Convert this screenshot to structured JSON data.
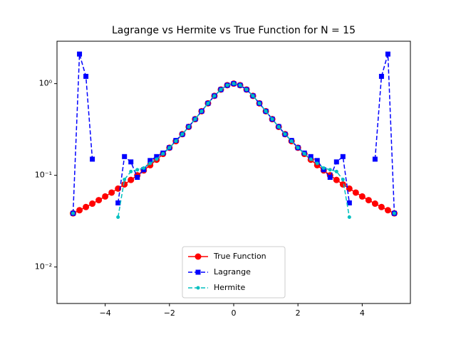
{
  "chart_data": {
    "type": "line",
    "title": "Lagrange vs Hermite vs True Function for N = 15",
    "x": [
      -5.0,
      -4.8,
      -4.6,
      -4.4,
      -4.2,
      -4.0,
      -3.8,
      -3.6,
      -3.4,
      -3.2,
      -3.0,
      -2.8,
      -2.6,
      -2.4,
      -2.2,
      -2.0,
      -1.8,
      -1.6,
      -1.4,
      -1.2,
      -1.0,
      -0.8,
      -0.6,
      -0.4,
      -0.2,
      0.0,
      0.2,
      0.4,
      0.6,
      0.8,
      1.0,
      1.2,
      1.4,
      1.6,
      1.8,
      2.0,
      2.2,
      2.4,
      2.6,
      2.8,
      3.0,
      3.2,
      3.4,
      3.6,
      3.8,
      4.0,
      4.2,
      4.4,
      4.6,
      4.8,
      5.0
    ],
    "series": [
      {
        "name": "True Function",
        "color": "#ff0000",
        "marker": "circle",
        "dashed": false,
        "values": [
          0.0385,
          0.0416,
          0.0451,
          0.0491,
          0.0536,
          0.0588,
          0.0648,
          0.0716,
          0.0796,
          0.089,
          0.1,
          0.1131,
          0.1289,
          0.1479,
          0.1712,
          0.2,
          0.2358,
          0.2809,
          0.3378,
          0.4098,
          0.5,
          0.6098,
          0.7353,
          0.8621,
          0.9615,
          1.0,
          0.9615,
          0.8621,
          0.7353,
          0.6098,
          0.5,
          0.4098,
          0.3378,
          0.2809,
          0.2358,
          0.2,
          0.1712,
          0.1479,
          0.1289,
          0.1131,
          0.1,
          0.089,
          0.0796,
          0.0716,
          0.0648,
          0.0588,
          0.0536,
          0.0491,
          0.0451,
          0.0416,
          0.0385
        ]
      },
      {
        "name": "Lagrange",
        "color": "#0000ff",
        "marker": "square",
        "dashed": true,
        "values": [
          0.0385,
          2.1,
          1.2,
          0.15,
          null,
          null,
          null,
          0.05,
          0.16,
          0.14,
          0.095,
          0.115,
          0.145,
          0.16,
          0.175,
          0.2,
          0.24,
          0.28,
          0.34,
          0.41,
          0.5,
          0.61,
          0.735,
          0.86,
          0.96,
          1.0,
          0.96,
          0.86,
          0.735,
          0.61,
          0.5,
          0.41,
          0.34,
          0.28,
          0.24,
          0.2,
          0.175,
          0.16,
          0.145,
          0.115,
          0.095,
          0.14,
          0.16,
          0.05,
          null,
          null,
          null,
          0.15,
          1.2,
          2.1,
          0.0385
        ]
      },
      {
        "name": "Hermite",
        "color": "#00bfbf",
        "marker": "dot",
        "dashed": true,
        "values": [
          0.0385,
          null,
          null,
          null,
          null,
          null,
          null,
          0.035,
          0.09,
          0.11,
          0.115,
          0.12,
          0.135,
          0.15,
          0.172,
          0.2,
          0.236,
          0.281,
          0.338,
          0.41,
          0.5,
          0.61,
          0.735,
          0.862,
          0.962,
          1.0,
          0.962,
          0.862,
          0.735,
          0.61,
          0.5,
          0.41,
          0.338,
          0.281,
          0.236,
          0.2,
          0.172,
          0.15,
          0.135,
          0.12,
          0.115,
          0.11,
          0.09,
          0.035,
          null,
          null,
          null,
          null,
          null,
          null,
          0.0385
        ]
      }
    ],
    "xlim": [
      -5.5,
      5.5
    ],
    "xticks": [
      {
        "value": -4,
        "label": "−4"
      },
      {
        "value": -2,
        "label": "−2"
      },
      0,
      2,
      4
    ],
    "ylim": [
      0.004,
      2.9
    ],
    "yticks": [
      {
        "value": 0.01,
        "label": "10⁻²"
      },
      {
        "value": 0.1,
        "label": "10⁻¹"
      },
      {
        "value": 1,
        "label": "10⁰"
      }
    ],
    "log_y": true,
    "legend": "lower center"
  }
}
